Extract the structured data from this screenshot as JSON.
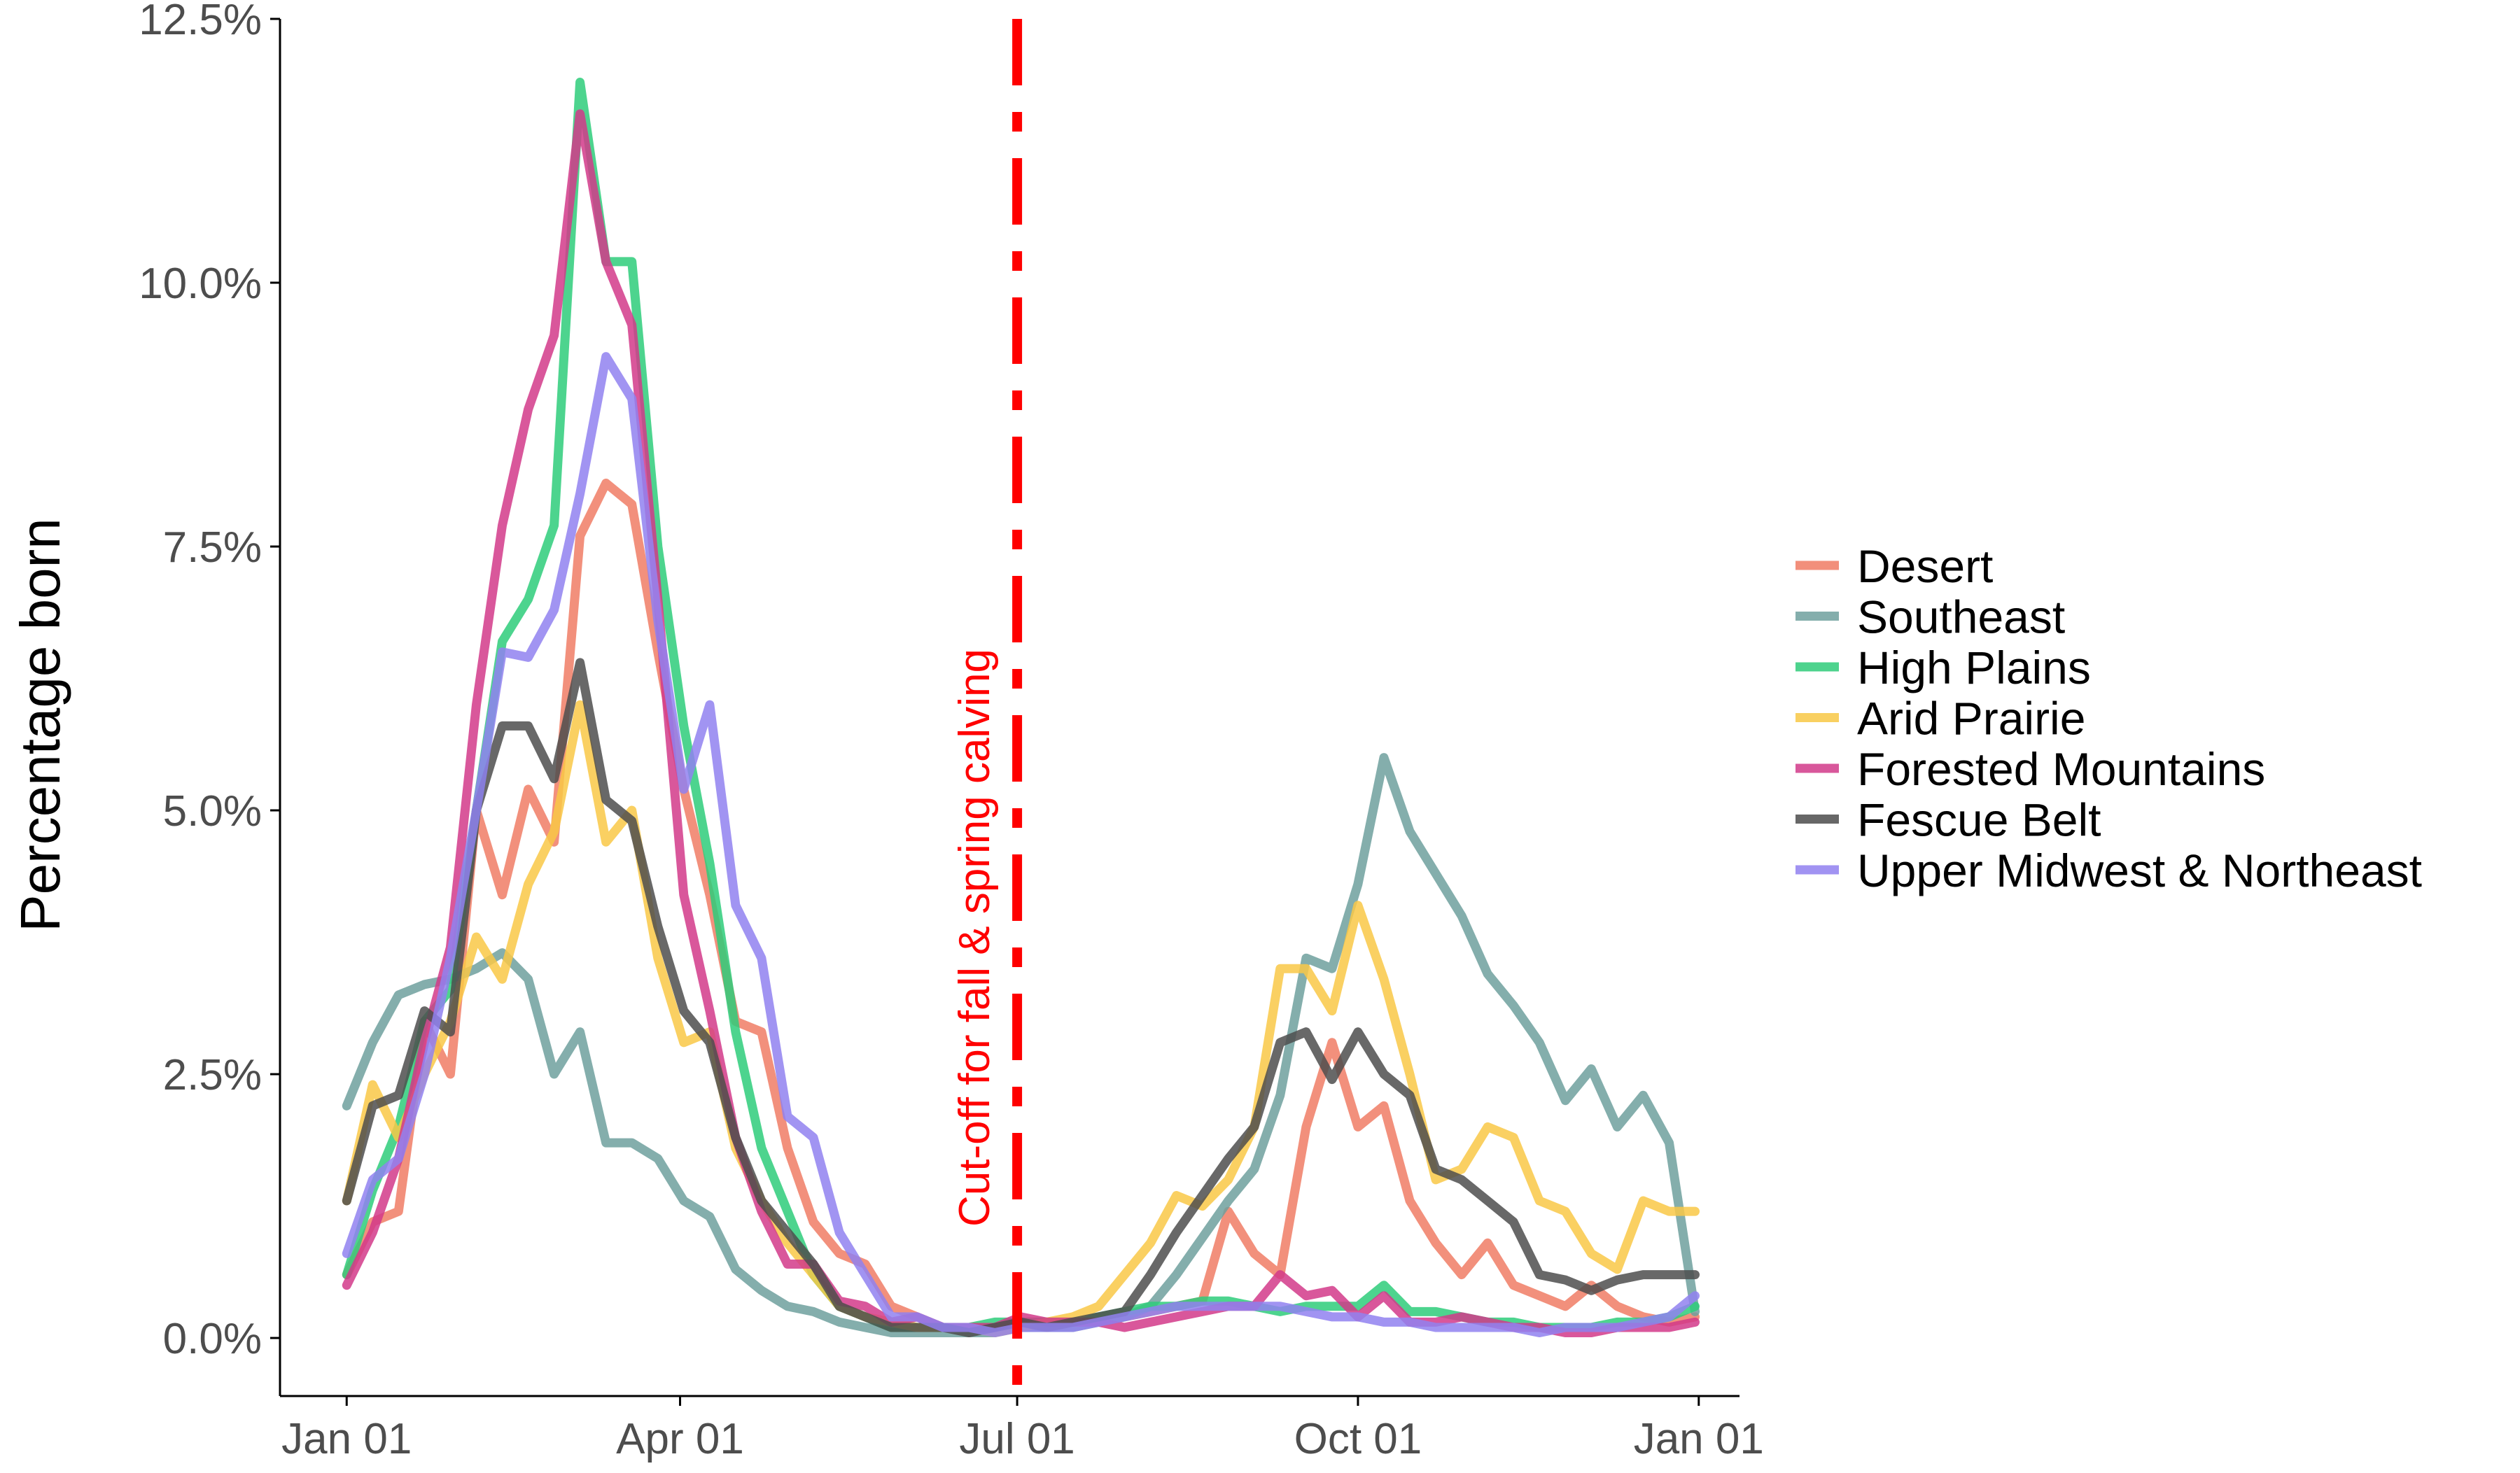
{
  "chart_data": {
    "type": "line",
    "title": "",
    "xlabel": "",
    "ylabel": "Percentage born",
    "x_ticks": [
      "Jan 01",
      "Apr 01",
      "Jul 01",
      "Oct 01",
      "Jan 01"
    ],
    "x_tick_days": [
      0,
      90,
      181,
      273,
      365
    ],
    "y_ticks": [
      "0.0%",
      "2.5%",
      "5.0%",
      "7.5%",
      "10.0%",
      "12.5%"
    ],
    "y_tick_values": [
      0,
      2.5,
      5,
      7.5,
      10,
      12.5
    ],
    "xlim": [
      -18,
      376
    ],
    "ylim": [
      -0.55,
      12.5
    ],
    "grid": false,
    "legend_position": "right",
    "x": [
      0,
      7,
      14,
      21,
      28,
      35,
      42,
      49,
      56,
      63,
      70,
      77,
      84,
      91,
      98,
      105,
      112,
      119,
      126,
      133,
      140,
      147,
      154,
      161,
      168,
      175,
      182,
      189,
      196,
      203,
      210,
      217,
      224,
      231,
      238,
      245,
      252,
      259,
      266,
      273,
      280,
      287,
      294,
      301,
      308,
      315,
      322,
      329,
      336,
      343,
      350,
      357,
      364
    ],
    "series": [
      {
        "name": "Desert",
        "color": "#F07C65",
        "values": [
          0.6,
          1.1,
          1.2,
          3.0,
          2.5,
          5.0,
          4.2,
          5.2,
          4.7,
          7.6,
          8.1,
          7.9,
          6.5,
          5.2,
          4.2,
          3.0,
          2.9,
          1.8,
          1.1,
          0.8,
          0.7,
          0.3,
          0.2,
          0.1,
          0.1,
          0.1,
          0.15,
          0.15,
          0.15,
          0.15,
          0.2,
          0.25,
          0.3,
          0.35,
          1.2,
          0.8,
          0.6,
          2.0,
          2.8,
          2.0,
          2.2,
          1.3,
          0.9,
          0.6,
          0.9,
          0.5,
          0.4,
          0.3,
          0.5,
          0.3,
          0.2,
          0.15,
          0.2
        ]
      },
      {
        "name": "Southeast",
        "color": "#6FA09E",
        "values": [
          2.2,
          2.8,
          3.25,
          3.35,
          3.4,
          3.5,
          3.65,
          3.4,
          2.5,
          2.9,
          1.85,
          1.85,
          1.7,
          1.3,
          1.15,
          0.65,
          0.45,
          0.3,
          0.25,
          0.15,
          0.1,
          0.05,
          0.05,
          0.05,
          0.05,
          0.05,
          0.1,
          0.1,
          0.1,
          0.15,
          0.2,
          0.3,
          0.6,
          0.95,
          1.3,
          1.6,
          2.3,
          3.6,
          3.5,
          4.3,
          5.5,
          4.8,
          4.4,
          4.0,
          3.45,
          3.15,
          2.8,
          2.25,
          2.55,
          2.0,
          2.3,
          1.85,
          0.25
        ]
      },
      {
        "name": "High Plains",
        "color": "#2ECC7A",
        "values": [
          0.6,
          1.4,
          2.0,
          3.0,
          3.3,
          5.0,
          6.6,
          7.0,
          7.7,
          11.9,
          10.2,
          10.2,
          7.5,
          5.8,
          4.5,
          2.9,
          1.8,
          1.2,
          0.6,
          0.3,
          0.2,
          0.1,
          0.1,
          0.1,
          0.1,
          0.15,
          0.15,
          0.15,
          0.15,
          0.2,
          0.25,
          0.3,
          0.3,
          0.35,
          0.35,
          0.3,
          0.25,
          0.3,
          0.3,
          0.3,
          0.5,
          0.25,
          0.25,
          0.2,
          0.15,
          0.15,
          0.1,
          0.1,
          0.1,
          0.15,
          0.15,
          0.2,
          0.3
        ]
      },
      {
        "name": "Arid Prairie",
        "color": "#F9C846",
        "values": [
          1.3,
          2.4,
          1.9,
          2.5,
          3.0,
          3.8,
          3.4,
          4.3,
          4.8,
          6.0,
          4.7,
          5.0,
          3.6,
          2.8,
          2.9,
          1.8,
          1.3,
          0.9,
          0.6,
          0.3,
          0.2,
          0.15,
          0.1,
          0.1,
          0.1,
          0.05,
          0.1,
          0.15,
          0.2,
          0.3,
          0.6,
          0.9,
          1.35,
          1.25,
          1.5,
          2.0,
          3.5,
          3.5,
          3.1,
          4.1,
          3.4,
          2.5,
          1.5,
          1.6,
          2.0,
          1.9,
          1.3,
          1.2,
          0.8,
          0.65,
          1.3,
          1.2,
          1.2
        ]
      },
      {
        "name": "Forested Mountains",
        "color": "#D23A8A",
        "values": [
          0.5,
          1.0,
          1.7,
          2.8,
          3.7,
          6.0,
          7.7,
          8.8,
          9.5,
          11.6,
          10.2,
          9.6,
          7.0,
          4.2,
          3.1,
          1.9,
          1.2,
          0.7,
          0.7,
          0.35,
          0.3,
          0.15,
          0.2,
          0.1,
          0.1,
          0.1,
          0.2,
          0.15,
          0.15,
          0.15,
          0.1,
          0.15,
          0.2,
          0.25,
          0.3,
          0.3,
          0.6,
          0.4,
          0.45,
          0.2,
          0.4,
          0.15,
          0.15,
          0.2,
          0.15,
          0.1,
          0.1,
          0.05,
          0.05,
          0.1,
          0.1,
          0.1,
          0.15
        ]
      },
      {
        "name": "Fescue Belt",
        "color": "#4D4D4D",
        "values": [
          1.3,
          2.2,
          2.3,
          3.1,
          2.9,
          5.0,
          5.8,
          5.8,
          5.3,
          6.4,
          5.1,
          4.9,
          3.9,
          3.1,
          2.8,
          1.9,
          1.3,
          1.0,
          0.7,
          0.3,
          0.2,
          0.1,
          0.1,
          0.1,
          0.05,
          0.1,
          0.15,
          0.1,
          0.15,
          0.2,
          0.25,
          0.6,
          1.0,
          1.35,
          1.7,
          2.0,
          2.8,
          2.9,
          2.45,
          2.9,
          2.5,
          2.3,
          1.6,
          1.5,
          1.3,
          1.1,
          0.6,
          0.55,
          0.45,
          0.55,
          0.6,
          0.6,
          0.6
        ]
      },
      {
        "name": "Upper Midwest & Northeast",
        "color": "#9181F0",
        "values": [
          0.8,
          1.5,
          1.7,
          2.5,
          3.6,
          5.0,
          6.5,
          6.45,
          6.9,
          8.0,
          9.3,
          8.9,
          6.8,
          5.2,
          6.0,
          4.1,
          3.6,
          2.1,
          1.9,
          1.0,
          0.6,
          0.2,
          0.2,
          0.1,
          0.1,
          0.05,
          0.1,
          0.1,
          0.1,
          0.15,
          0.2,
          0.25,
          0.3,
          0.3,
          0.3,
          0.3,
          0.3,
          0.25,
          0.2,
          0.2,
          0.15,
          0.15,
          0.1,
          0.1,
          0.1,
          0.1,
          0.05,
          0.1,
          0.1,
          0.1,
          0.15,
          0.2,
          0.4
        ]
      }
    ],
    "annotations": [
      {
        "type": "vline",
        "x": 181,
        "color": "#FF0000",
        "style": "dashed",
        "label": "Cut-off for fall & spring calving"
      }
    ]
  }
}
